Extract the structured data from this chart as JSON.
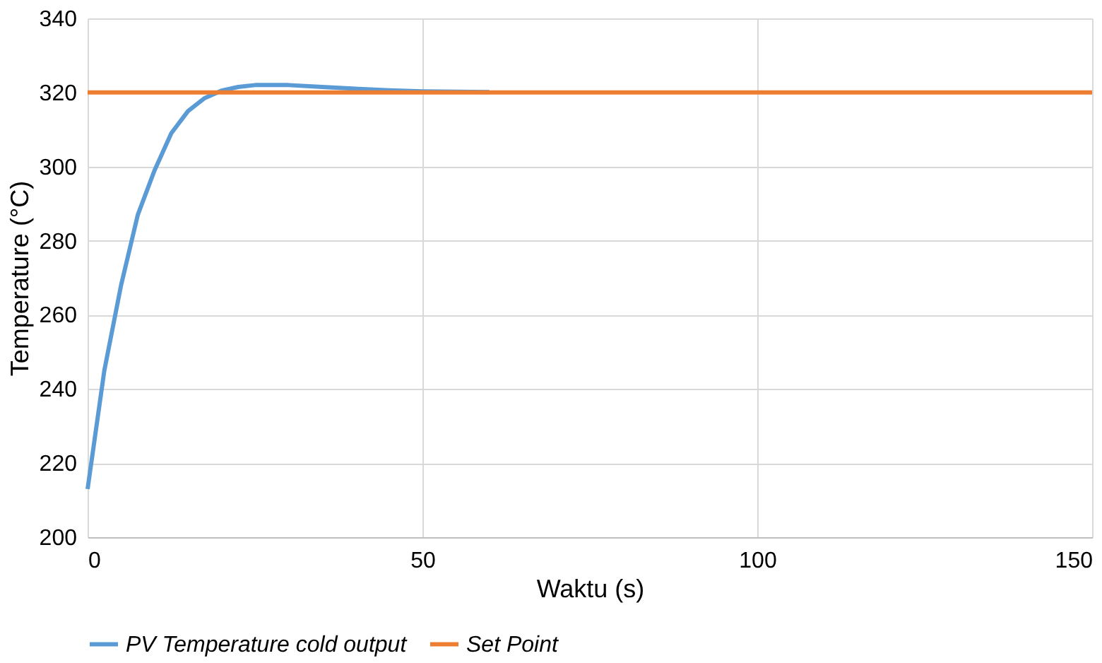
{
  "chart_data": {
    "type": "line",
    "xlabel": "Waktu (s)",
    "ylabel": "Temperature (°C)",
    "xlim": [
      0,
      150
    ],
    "xticks": [
      0,
      50,
      100,
      150
    ],
    "ylim": [
      200,
      340
    ],
    "yticks": [
      200,
      220,
      240,
      260,
      280,
      300,
      320,
      340
    ],
    "grid": true,
    "legend": "bottom",
    "marker": "none",
    "line_style": "solid",
    "series": [
      {
        "name": "PV Temperature cold output",
        "color": "#5b9bd5",
        "x": [
          0,
          2.5,
          5,
          7.5,
          10,
          12.5,
          15,
          17.5,
          20,
          22.5,
          25,
          30,
          35,
          40,
          45,
          50,
          60
        ],
        "values": [
          213,
          245,
          268,
          287,
          299,
          309,
          315,
          318.5,
          320.5,
          321.5,
          322,
          322,
          321.5,
          321,
          320.6,
          320.3,
          320.1
        ]
      },
      {
        "name": "Set Point",
        "color": "#ed7d31",
        "x": [
          0,
          150
        ],
        "values": [
          320,
          320
        ]
      }
    ]
  }
}
